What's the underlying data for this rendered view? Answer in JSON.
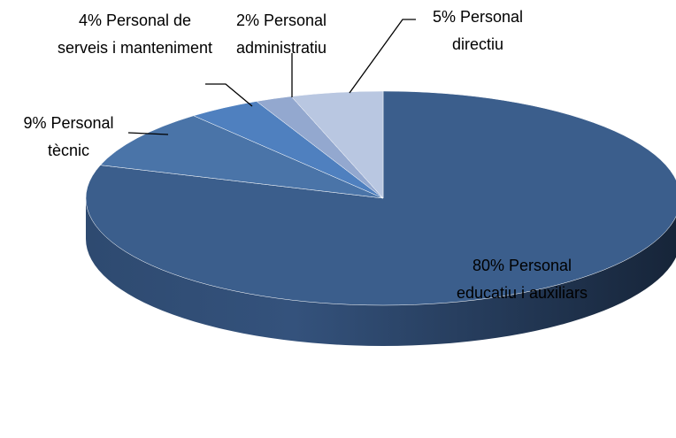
{
  "chart_data": {
    "type": "pie3d",
    "categories": [
      "Personal educatiu i auxiliars",
      "Personal tècnic",
      "Personal de serveis i manteniment",
      "Personal administratiu",
      "Personal directiu"
    ],
    "values": [
      80,
      9,
      4,
      2,
      5
    ],
    "value_labels": [
      "80%",
      "9%",
      "4%",
      "2%",
      "5%"
    ],
    "colors": [
      "#3b5e8c",
      "#4a74a8",
      "#4f80bf",
      "#93a8cf",
      "#b9c7e1"
    ]
  }
}
